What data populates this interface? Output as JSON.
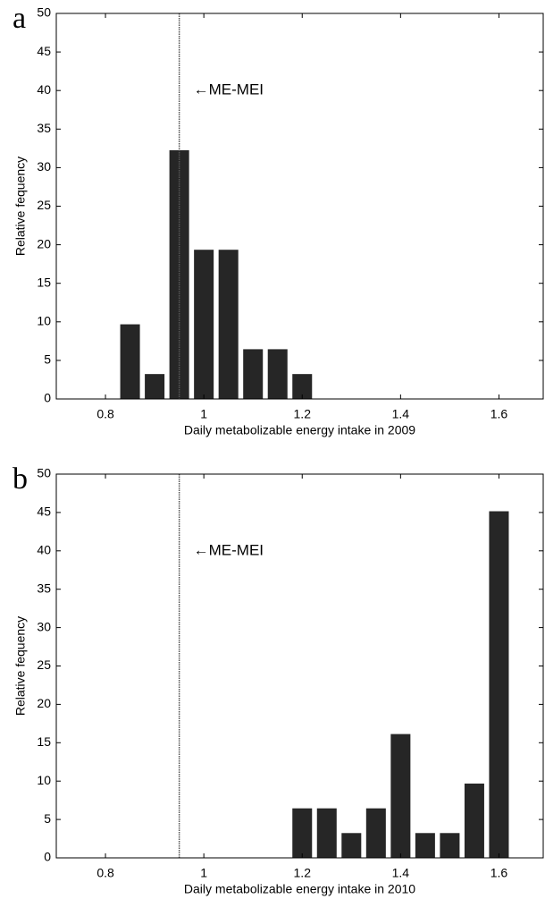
{
  "chart_data": [
    {
      "type": "histogram",
      "panel_label": "a",
      "xlabel": "Daily metabolizable energy intake in 2009",
      "ylabel": "Relative fequency",
      "bins": [
        0.825,
        0.875,
        0.925,
        0.975,
        1.025,
        1.075,
        1.125,
        1.175,
        1.225
      ],
      "values": [
        9.68,
        3.23,
        32.26,
        19.35,
        19.35,
        6.45,
        6.45,
        3.23
      ],
      "color": "#262626",
      "xlim": [
        0.7,
        1.69
      ],
      "ylim": [
        0,
        50
      ],
      "xticks": [
        0.8,
        1,
        1.2,
        1.4,
        1.6
      ],
      "yticks": [
        0,
        5,
        10,
        15,
        20,
        25,
        30,
        35,
        40,
        45,
        50
      ],
      "vline": 0.95,
      "annotation": "←ME-MEI"
    },
    {
      "type": "histogram",
      "panel_label": "b",
      "xlabel": "Daily metabolizable energy intake in 2010",
      "ylabel": "Relative fequency",
      "bins": [
        1.175,
        1.225,
        1.275,
        1.325,
        1.375,
        1.425,
        1.475,
        1.525,
        1.575,
        1.625
      ],
      "values": [
        6.45,
        6.45,
        3.23,
        6.45,
        16.13,
        3.23,
        3.23,
        9.68,
        45.16
      ],
      "color": "#262626",
      "xlim": [
        0.7,
        1.69
      ],
      "ylim": [
        0,
        50
      ],
      "xticks": [
        0.8,
        1,
        1.2,
        1.4,
        1.6
      ],
      "yticks": [
        0,
        5,
        10,
        15,
        20,
        25,
        30,
        35,
        40,
        45,
        50
      ],
      "vline": 0.95,
      "annotation": "←ME-MEI"
    }
  ]
}
